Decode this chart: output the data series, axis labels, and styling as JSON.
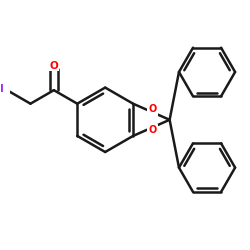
{
  "bg_color": "#ffffff",
  "bond_color": "#1a1a1a",
  "oxygen_color": "#ff0000",
  "iodine_color": "#9b30ff",
  "lw": 1.8,
  "figsize": [
    2.5,
    2.5
  ],
  "dpi": 100,
  "xlim": [
    -0.1,
    1.05
  ],
  "ylim": [
    -0.05,
    1.0
  ]
}
